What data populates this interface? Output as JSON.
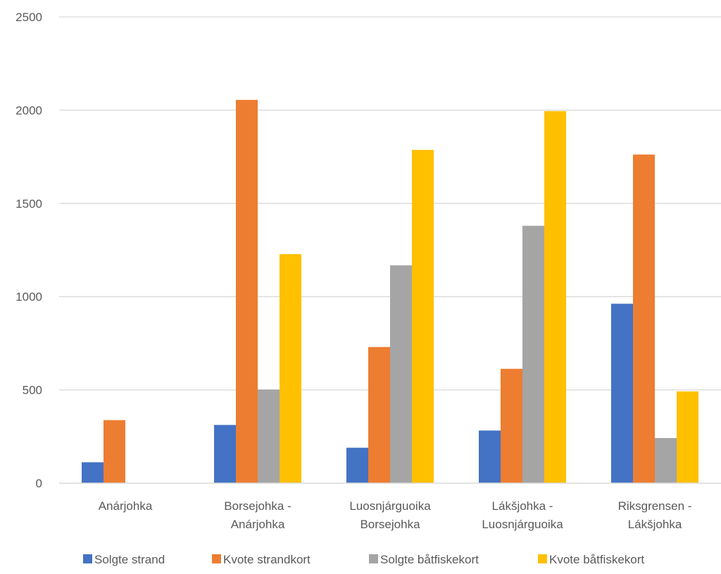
{
  "chart_data": {
    "type": "bar",
    "title": "",
    "xlabel": "",
    "ylabel": "",
    "ylim": [
      0,
      2500
    ],
    "yticks": [
      0,
      500,
      1000,
      1500,
      2000,
      2500
    ],
    "grid": true,
    "legend_position": "bottom",
    "categories": [
      [
        "Anárjohka"
      ],
      [
        "Borsejohka -",
        "Anárjohka"
      ],
      [
        "Luosnjárguoika",
        "Borsejohka"
      ],
      [
        "Lákšjohka -",
        "Luosnjárguoika"
      ],
      [
        "Riksgrensen -",
        "Lákšjohka"
      ]
    ],
    "series": [
      {
        "name": "Solgte strand",
        "color": "#4472C4",
        "values": [
          112,
          312,
          190,
          282,
          962
        ]
      },
      {
        "name": "Kvote strandkort",
        "color": "#ED7D31",
        "values": [
          338,
          2055,
          730,
          613,
          1762
        ]
      },
      {
        "name": "Solgte båtfiskekort",
        "color": "#A5A5A5",
        "values": [
          null,
          502,
          1168,
          1380,
          242
        ]
      },
      {
        "name": "Kvote båtfiskekort",
        "color": "#FFC000",
        "values": [
          null,
          1228,
          1787,
          1995,
          492
        ]
      }
    ]
  }
}
